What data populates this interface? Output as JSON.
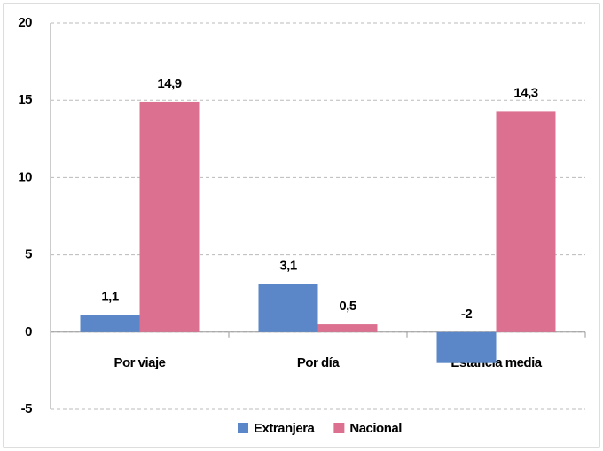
{
  "chart_data": {
    "type": "bar",
    "categories": [
      "Por viaje",
      "Por día",
      "Estancia media"
    ],
    "series": [
      {
        "name": "Extranjera",
        "color": "#5b87c8",
        "values": [
          1.1,
          3.1,
          -2
        ],
        "value_labels": [
          "1,1",
          "3,1",
          "-2"
        ]
      },
      {
        "name": "Nacional",
        "color": "#dc7090",
        "values": [
          14.9,
          0.5,
          14.3
        ],
        "value_labels": [
          "14,9",
          "0,5",
          "14,3"
        ]
      }
    ],
    "ylim": [
      -5,
      20
    ],
    "yticks": [
      -5,
      0,
      5,
      10,
      15,
      20
    ],
    "grid": true,
    "legend": "bottom"
  }
}
